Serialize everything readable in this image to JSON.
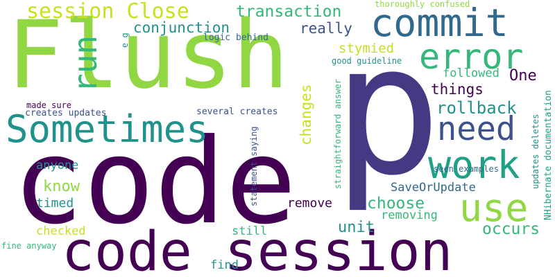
{
  "colors": {
    "background": "#ffffff",
    "dark_purple": "#440154",
    "indigo": "#443983",
    "blue": "#31688e",
    "slate": "#3b528b",
    "teal": "#21918c",
    "teal_green": "#1fa187",
    "green": "#35b779",
    "lime": "#90d743",
    "yellow": "#c8e020"
  },
  "words": {
    "p": "p",
    "flush": "Flush",
    "code_big": "code",
    "code_session": "code session",
    "commit": "commit",
    "error": "error",
    "work": "work",
    "use": "use",
    "need": "need",
    "sometimes": "Sometimes",
    "session_close": "session Close",
    "transaction": "transaction",
    "conjunction": "conjunction",
    "run": "run",
    "really": "really",
    "stymied": "stymied",
    "things": "things",
    "rollback": "rollback",
    "changes": "changes",
    "one": "One",
    "followed": "followed",
    "good_guideline": "good guideline",
    "thoroughly_confused": "thoroughly confused",
    "logic_behind": "logic behind",
    "e_g": "e g",
    "made_sure": "made sure",
    "creates_updates": "creates updates",
    "several_creates": "several creates",
    "straightforward_answer": "straightforward answer",
    "statement_saying": "statement saying",
    "seen_examples": "seen examples",
    "updates_deletes": "updates deletes",
    "nhibernate_documentation": "NHibernate documentation",
    "anyone": "anyone",
    "know": "know",
    "timed": "timed",
    "choose": "choose",
    "saveorupdate": "SaveOrUpdate",
    "remove": "remove",
    "removing": "removing",
    "unit": "unit",
    "occurs": "occurs",
    "checked": "checked",
    "still": "still",
    "find": "find",
    "fine_anyway": "fine anyway"
  }
}
